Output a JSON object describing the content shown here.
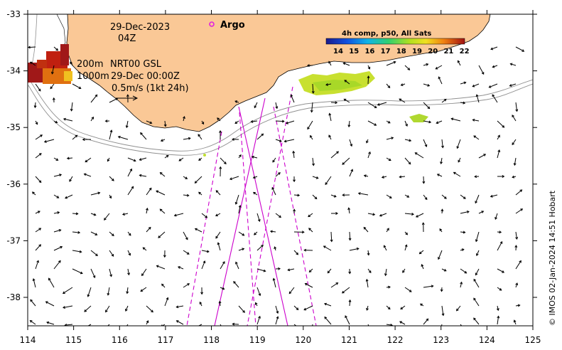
{
  "map": {
    "date_line1": "29-Dec-2023",
    "date_line2": "04Z",
    "argo_label": "Argo",
    "contour_label_200": "200m",
    "contour_label_1000": "1000m",
    "product_line": "NRT00 GSL",
    "product_time": "29-Dec 00:00Z",
    "vector_scale_label": "0.5m/s (1kt 24h)",
    "credit": "© IMOS 02-Jan-2024 14:51 Hobart",
    "colorbar": {
      "title": "4h comp, p50, All Sats",
      "ticks": [
        "14",
        "15",
        "16",
        "17",
        "18",
        "19",
        "20",
        "21",
        "22"
      ]
    },
    "x_ticks": [
      "114",
      "115",
      "116",
      "117",
      "118",
      "119",
      "120",
      "121",
      "122",
      "123",
      "124",
      "125"
    ],
    "y_ticks": [
      "-33",
      "-34",
      "-35",
      "-36",
      "-37",
      "-38"
    ],
    "colors": {
      "land": "#fac896",
      "argo": "#e020e0",
      "tracks": "#cc00cc",
      "contour": "#909090"
    }
  }
}
